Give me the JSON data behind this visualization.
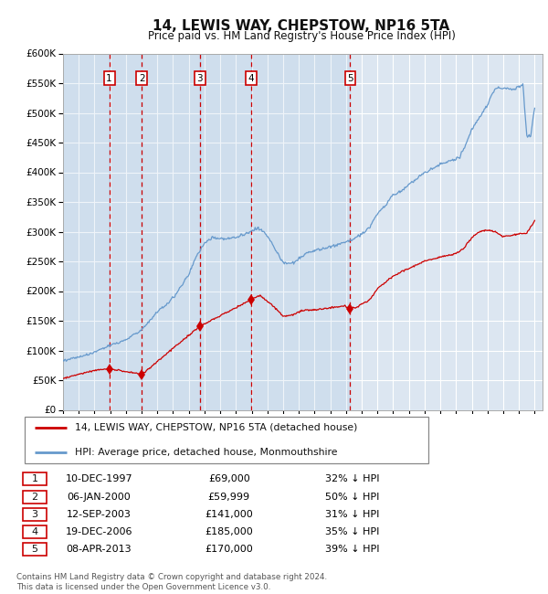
{
  "title": "14, LEWIS WAY, CHEPSTOW, NP16 5TA",
  "subtitle": "Price paid vs. HM Land Registry's House Price Index (HPI)",
  "legend_line1": "14, LEWIS WAY, CHEPSTOW, NP16 5TA (detached house)",
  "legend_line2": "HPI: Average price, detached house, Monmouthshire",
  "footer_line1": "Contains HM Land Registry data © Crown copyright and database right 2024.",
  "footer_line2": "This data is licensed under the Open Government Licence v3.0.",
  "hpi_color": "#6699cc",
  "price_color": "#cc0000",
  "bg_color": "#dce6f1",
  "grid_color": "#ffffff",
  "ylim": [
    0,
    600000
  ],
  "yticks": [
    0,
    50000,
    100000,
    150000,
    200000,
    250000,
    300000,
    350000,
    400000,
    450000,
    500000,
    550000,
    600000
  ],
  "ytick_labels": [
    "£0",
    "£50K",
    "£100K",
    "£150K",
    "£200K",
    "£250K",
    "£300K",
    "£350K",
    "£400K",
    "£450K",
    "£500K",
    "£550K",
    "£600K"
  ],
  "xlim_start": 1995.0,
  "xlim_end": 2025.5,
  "transactions": [
    {
      "num": 1,
      "date": "10-DEC-1997",
      "year": 1997.94,
      "price": 69000,
      "pct": "32%"
    },
    {
      "num": 2,
      "date": "06-JAN-2000",
      "year": 2000.02,
      "price": 59999,
      "pct": "50%"
    },
    {
      "num": 3,
      "date": "12-SEP-2003",
      "year": 2003.7,
      "price": 141000,
      "pct": "31%"
    },
    {
      "num": 4,
      "date": "19-DEC-2006",
      "year": 2006.97,
      "price": 185000,
      "pct": "35%"
    },
    {
      "num": 5,
      "date": "08-APR-2013",
      "year": 2013.27,
      "price": 170000,
      "pct": "39%"
    }
  ],
  "hpi_ctrl_x": [
    1995.0,
    1995.5,
    1996.0,
    1996.5,
    1997.0,
    1997.5,
    1998.0,
    1998.5,
    1999.0,
    1999.5,
    2000.0,
    2000.5,
    2001.0,
    2001.5,
    2002.0,
    2002.5,
    2003.0,
    2003.5,
    2004.0,
    2004.5,
    2005.0,
    2005.5,
    2006.0,
    2006.5,
    2007.0,
    2007.25,
    2007.5,
    2007.75,
    2008.0,
    2008.25,
    2008.5,
    2008.75,
    2009.0,
    2009.25,
    2009.5,
    2009.75,
    2010.0,
    2010.5,
    2011.0,
    2011.5,
    2012.0,
    2012.5,
    2013.0,
    2013.5,
    2014.0,
    2014.5,
    2015.0,
    2015.5,
    2016.0,
    2016.5,
    2017.0,
    2017.5,
    2018.0,
    2018.5,
    2019.0,
    2019.5,
    2020.0,
    2020.25,
    2020.5,
    2020.75,
    2021.0,
    2021.25,
    2021.5,
    2021.75,
    2022.0,
    2022.25,
    2022.5,
    2022.75,
    2023.0,
    2023.25,
    2023.5,
    2023.75,
    2024.0,
    2024.25,
    2024.5,
    2024.75,
    2025.0
  ],
  "hpi_ctrl_y": [
    83000,
    86000,
    89000,
    92000,
    97000,
    103000,
    109000,
    113000,
    118000,
    127000,
    135000,
    150000,
    165000,
    176000,
    188000,
    208000,
    228000,
    260000,
    280000,
    290000,
    288000,
    289000,
    290000,
    295000,
    302000,
    305000,
    304000,
    300000,
    293000,
    282000,
    270000,
    258000,
    248000,
    247000,
    247000,
    249000,
    255000,
    263000,
    268000,
    271000,
    275000,
    278000,
    283000,
    287000,
    296000,
    308000,
    330000,
    345000,
    362000,
    368000,
    380000,
    388000,
    400000,
    406000,
    413000,
    418000,
    423000,
    427000,
    440000,
    455000,
    472000,
    482000,
    492000,
    504000,
    514000,
    530000,
    540000,
    542000,
    542000,
    541000,
    540000,
    540000,
    545000,
    548000,
    460000,
    462000,
    510000
  ],
  "price_ctrl_x": [
    1995.0,
    1995.5,
    1996.0,
    1996.5,
    1997.0,
    1997.5,
    1997.94,
    2000.02,
    2003.7,
    2006.97,
    2007.25,
    2007.5,
    2007.75,
    2008.0,
    2008.25,
    2008.5,
    2008.75,
    2009.0,
    2009.25,
    2009.5,
    2009.75,
    2010.0,
    2010.5,
    2011.0,
    2011.5,
    2012.0,
    2012.5,
    2013.0,
    2013.27,
    2013.75,
    2014.0,
    2014.5,
    2015.0,
    2015.5,
    2016.0,
    2016.5,
    2017.0,
    2017.5,
    2018.0,
    2018.5,
    2019.0,
    2019.5,
    2020.0,
    2020.5,
    2021.0,
    2021.5,
    2022.0,
    2022.5,
    2023.0,
    2023.5,
    2024.0,
    2024.5,
    2025.0
  ],
  "price_ctrl_y": [
    53000,
    56000,
    60000,
    63000,
    66000,
    68000,
    69000,
    59999,
    141000,
    185000,
    190000,
    193000,
    188000,
    182000,
    177000,
    172000,
    165000,
    158000,
    157000,
    160000,
    162000,
    165000,
    168000,
    168000,
    170000,
    172000,
    174000,
    175000,
    170000,
    174000,
    178000,
    185000,
    204000,
    215000,
    225000,
    232000,
    238000,
    244000,
    250000,
    254000,
    257000,
    260000,
    263000,
    272000,
    290000,
    300000,
    303000,
    300000,
    292000,
    293000,
    296000,
    298000,
    318000
  ]
}
